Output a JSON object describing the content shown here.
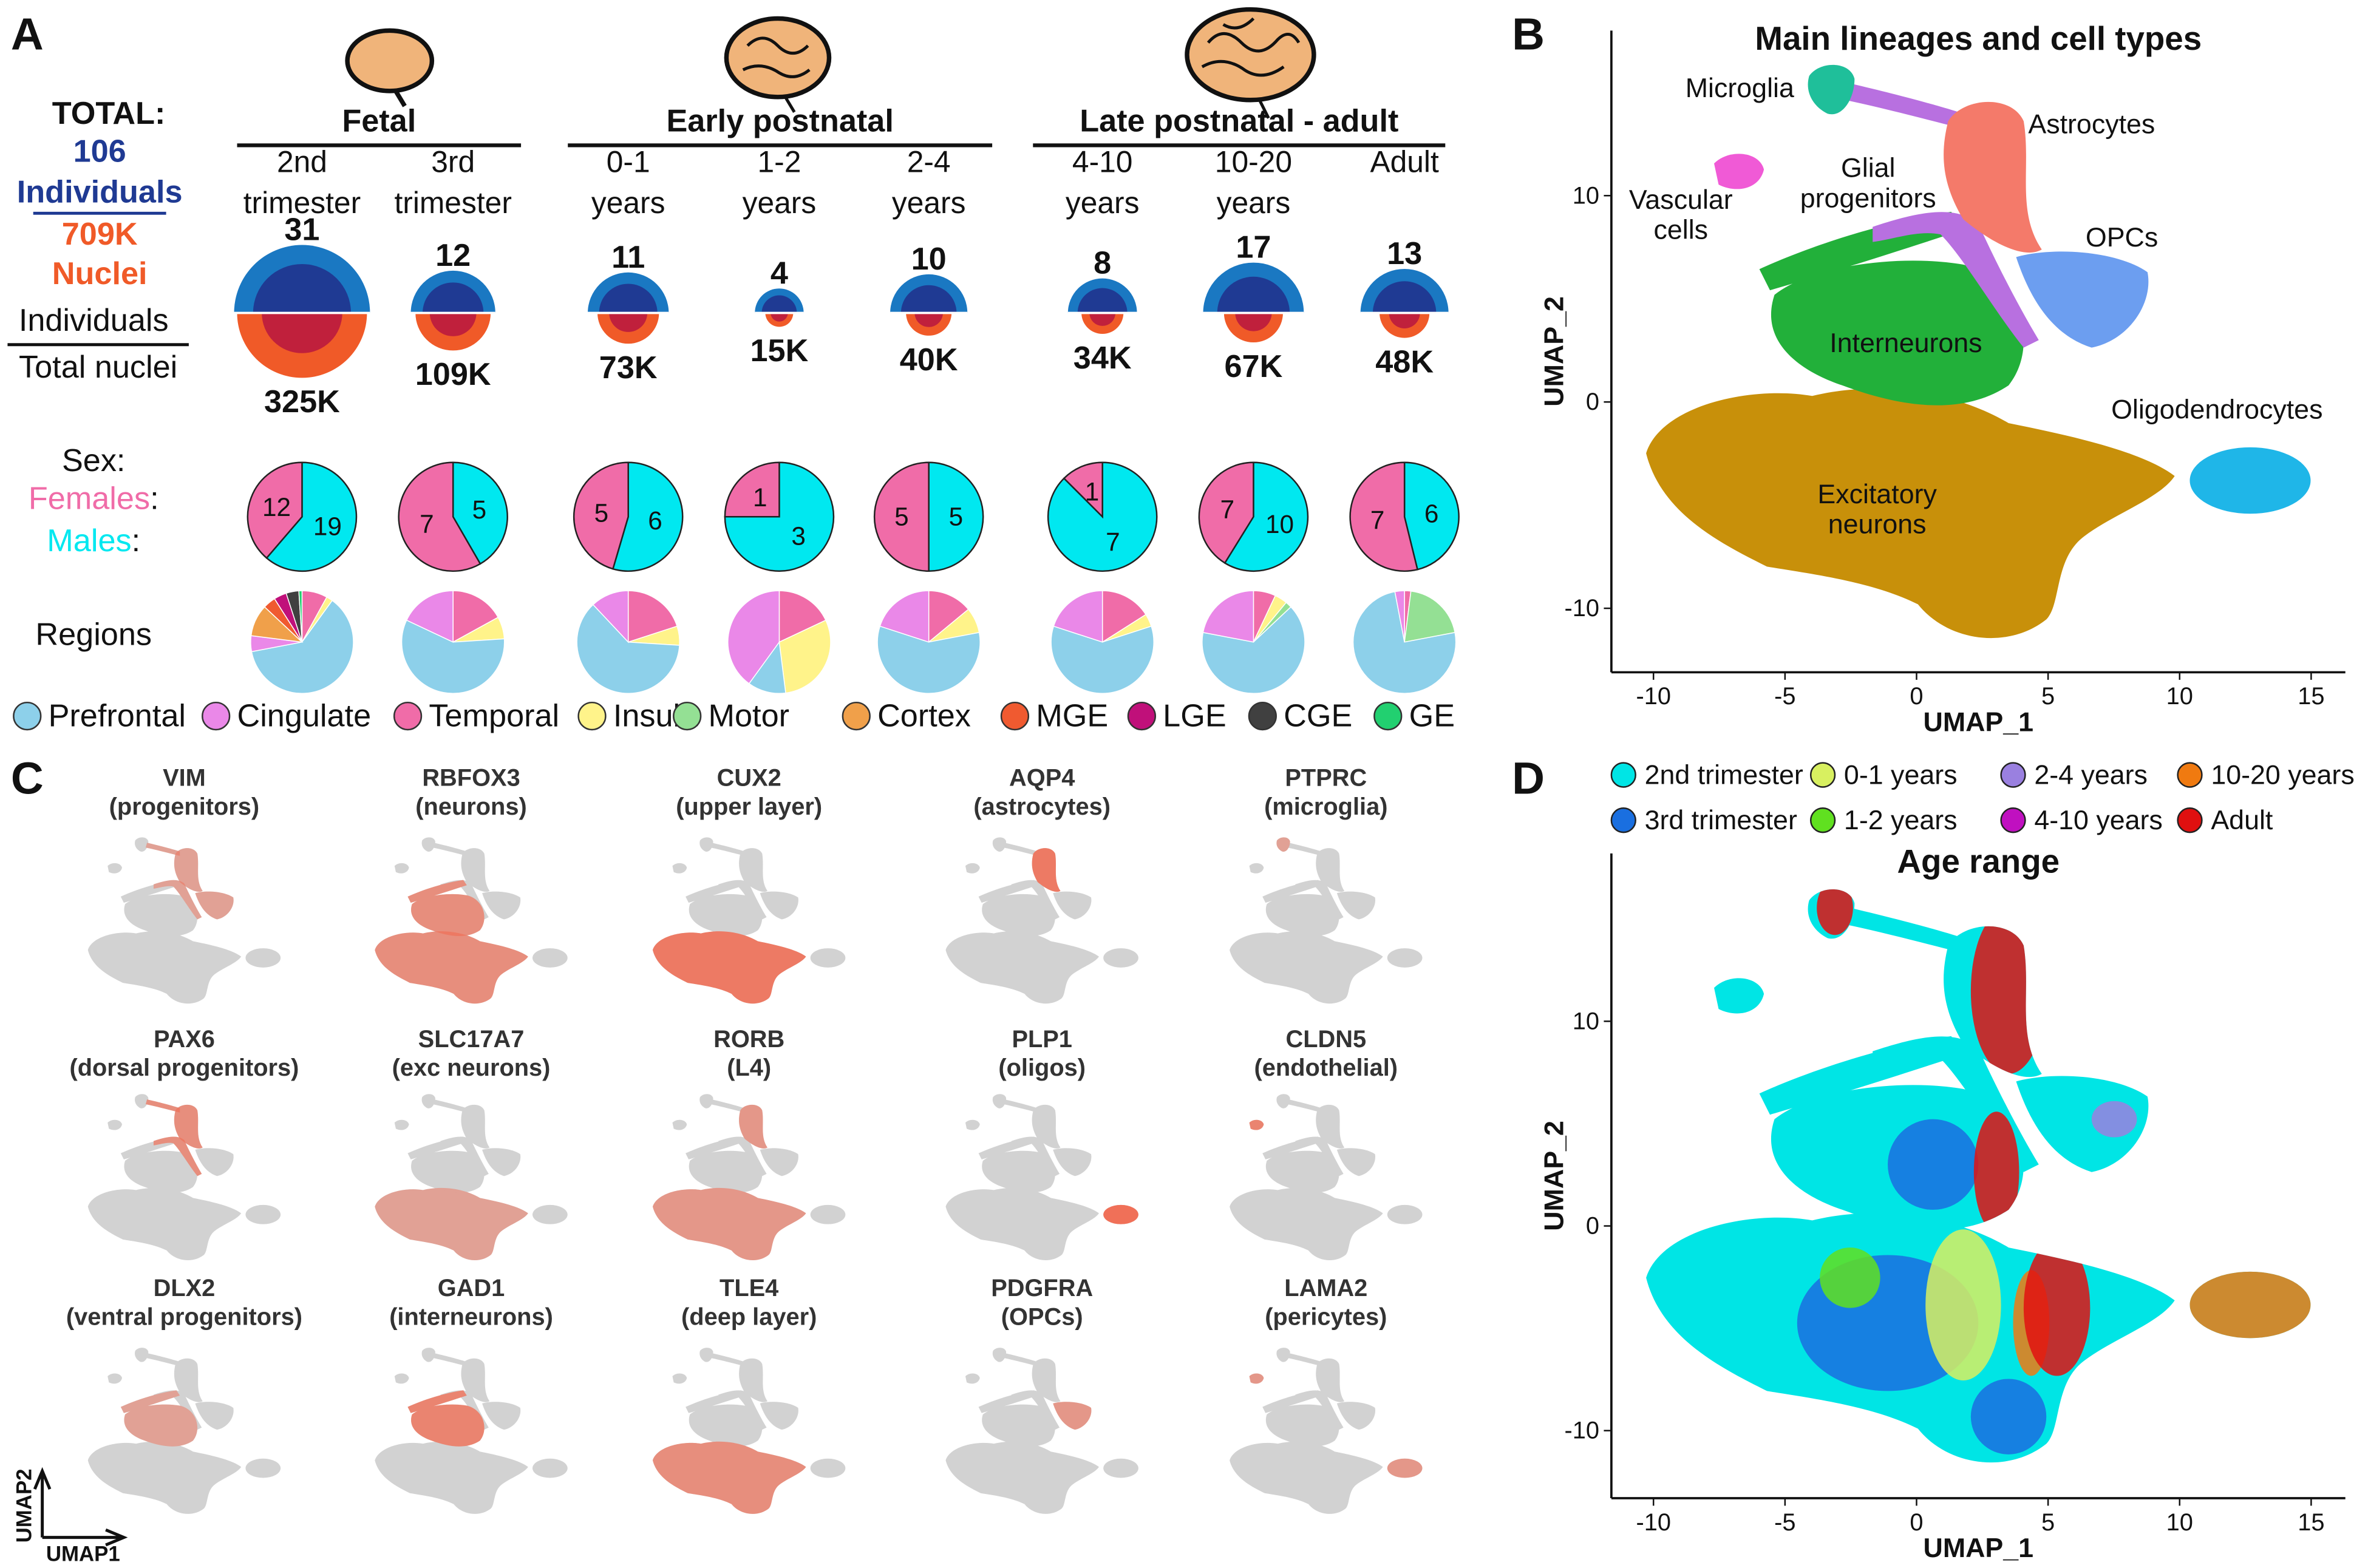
{
  "panel_a": {
    "letter": "A",
    "total": {
      "heading": "TOTAL:",
      "individuals": 106,
      "individuals_word": "Individuals",
      "nuclei": 709000,
      "nuclei_label": "709K",
      "nuclei_word": "Nuclei"
    },
    "key": {
      "individuals": "Individuals",
      "nuclei": "Total nuclei"
    },
    "sex": {
      "heading": "Sex:",
      "females": "Females",
      "males": "Males",
      "colon": ":",
      "female_color": "#f06ca8",
      "male_color": "#00e8f0"
    },
    "regions_heading": "Regions",
    "region_names": [
      "Prefrontal",
      "Cingulate",
      "Temporal",
      "Insula",
      "Motor",
      "Cortex",
      "MGE",
      "LGE",
      "CGE",
      "GE"
    ],
    "region_colors": [
      "#8dd0ea",
      "#ea88e8",
      "#f06ca8",
      "#fff38a",
      "#94e094",
      "#f0a04a",
      "#f05a30",
      "#c0107a",
      "#404040",
      "#22d070"
    ],
    "groups": [
      {
        "name": "Fetal",
        "stages": [
          {
            "label": [
              "2nd",
              "trimester"
            ],
            "individuals": 31,
            "nuclei": 325000,
            "nuclei_label": "325K",
            "females": 12,
            "males": 19,
            "regions": [
              62,
              5,
              8,
              2,
              0,
              10,
              4,
              4,
              4,
              1
            ]
          },
          {
            "label": [
              "3rd",
              "trimester"
            ],
            "individuals": 12,
            "nuclei": 109000,
            "nuclei_label": "109K",
            "females": 7,
            "males": 5,
            "regions": [
              58,
              18,
              17,
              7,
              0,
              0,
              0,
              0,
              0,
              0
            ]
          }
        ]
      },
      {
        "name": "Early postnatal",
        "stages": [
          {
            "label": [
              "0-1",
              "years"
            ],
            "individuals": 11,
            "nuclei": 73000,
            "nuclei_label": "73K",
            "females": 5,
            "males": 6,
            "regions": [
              62,
              12,
              20,
              6,
              0,
              0,
              0,
              0,
              0,
              0
            ]
          },
          {
            "label": [
              "1-2",
              "years"
            ],
            "individuals": 4,
            "nuclei": 15000,
            "nuclei_label": "15K",
            "females": 1,
            "males": 3,
            "regions": [
              12,
              40,
              18,
              30,
              0,
              0,
              0,
              0,
              0,
              0
            ]
          },
          {
            "label": [
              "2-4",
              "years"
            ],
            "individuals": 10,
            "nuclei": 40000,
            "nuclei_label": "40K",
            "females": 5,
            "males": 5,
            "regions": [
              58,
              20,
              14,
              8,
              0,
              0,
              0,
              0,
              0,
              0
            ]
          }
        ]
      },
      {
        "name": "Late postnatal - adult",
        "stages": [
          {
            "label": [
              "4-10",
              "years"
            ],
            "individuals": 8,
            "nuclei": 34000,
            "nuclei_label": "34K",
            "females": 1,
            "males": 7,
            "regions": [
              60,
              20,
              16,
              4,
              0,
              0,
              0,
              0,
              0,
              0
            ]
          },
          {
            "label": [
              "10-20",
              "years"
            ],
            "individuals": 17,
            "nuclei": 67000,
            "nuclei_label": "67K",
            "females": 7,
            "males": 10,
            "regions": [
              65,
              22,
              7,
              4,
              2,
              0,
              0,
              0,
              0,
              0
            ]
          },
          {
            "label": [
              "Adult"
            ],
            "individuals": 13,
            "nuclei": 48000,
            "nuclei_label": "48K",
            "females": 7,
            "males": 6,
            "regions": [
              75,
              3,
              2,
              0,
              20,
              0,
              0,
              0,
              0,
              0
            ]
          }
        ]
      }
    ]
  },
  "panel_b": {
    "letter": "B",
    "title": "Main lineages and cell types",
    "x_label": "UMAP_1",
    "y_label": "UMAP_2",
    "xlim": [
      -11.6,
      16.3
    ],
    "ylim": [
      -13.1,
      18
    ],
    "xticks": [
      -10,
      -5,
      0,
      5,
      10,
      15
    ],
    "yticks": [
      -10,
      0,
      10
    ],
    "cell_types": [
      {
        "label": [
          "Microglia"
        ],
        "color": "#1fbf9a"
      },
      {
        "label": [
          "Vascular",
          "cells"
        ],
        "color": "#f05ad6"
      },
      {
        "label": [
          "Glial",
          "progenitors"
        ],
        "color": "#b870e0"
      },
      {
        "label": [
          "Astrocytes"
        ],
        "color": "#f47a6a"
      },
      {
        "label": [
          "OPCs"
        ],
        "color": "#6c9ef0"
      },
      {
        "label": [
          "Interneurons"
        ],
        "color": "#22b03a"
      },
      {
        "label": [
          "Oligodendrocytes"
        ],
        "color": "#1fb6e8"
      },
      {
        "label": [
          "Excitatory",
          "neurons"
        ],
        "color": "#c8900a"
      }
    ]
  },
  "panel_c": {
    "letter": "C",
    "x_arrow": "UMAP1",
    "y_arrow": "UMAP2",
    "genes": [
      {
        "gene": "VIM",
        "description": "(progenitors)"
      },
      {
        "gene": "RBFOX3",
        "description": "(neurons)"
      },
      {
        "gene": "CUX2",
        "description": "(upper layer)"
      },
      {
        "gene": "AQP4",
        "description": "(astrocytes)"
      },
      {
        "gene": "PTPRC",
        "description": "(microglia)"
      },
      {
        "gene": "PAX6",
        "description": "(dorsal progenitors)"
      },
      {
        "gene": "SLC17A7",
        "description": "(exc neurons)"
      },
      {
        "gene": "RORB",
        "description": "(L4)"
      },
      {
        "gene": "PLP1",
        "description": "(oligos)"
      },
      {
        "gene": "CLDN5",
        "description": "(endothelial)"
      },
      {
        "gene": "DLX2",
        "description": "(ventral progenitors)"
      },
      {
        "gene": "GAD1",
        "description": "(interneurons)"
      },
      {
        "gene": "TLE4",
        "description": "(deep layer)"
      },
      {
        "gene": "PDGFRA",
        "description": "(OPCs)"
      },
      {
        "gene": "LAMA2",
        "description": "(pericytes)"
      }
    ]
  },
  "panel_d": {
    "letter": "D",
    "title": "Age range",
    "x_label": "UMAP_1",
    "y_label": "UMAP_2",
    "xlim": [
      -11.6,
      16.3
    ],
    "ylim": [
      -13.3,
      18.2
    ],
    "xticks": [
      -10,
      -5,
      0,
      5,
      10,
      15
    ],
    "yticks": [
      -10,
      0,
      10
    ],
    "ages": [
      {
        "name": "2nd trimester",
        "color": "#00e5e5"
      },
      {
        "name": "3rd trimester",
        "color": "#1a6fe0"
      },
      {
        "name": "0-1 years",
        "color": "#d8f060"
      },
      {
        "name": "1-2 years",
        "color": "#60e020"
      },
      {
        "name": "2-4 years",
        "color": "#9a80e0"
      },
      {
        "name": "4-10 years",
        "color": "#c010c0"
      },
      {
        "name": "10-20 years",
        "color": "#f07a10"
      },
      {
        "name": "Adult",
        "color": "#e01010"
      }
    ]
  }
}
